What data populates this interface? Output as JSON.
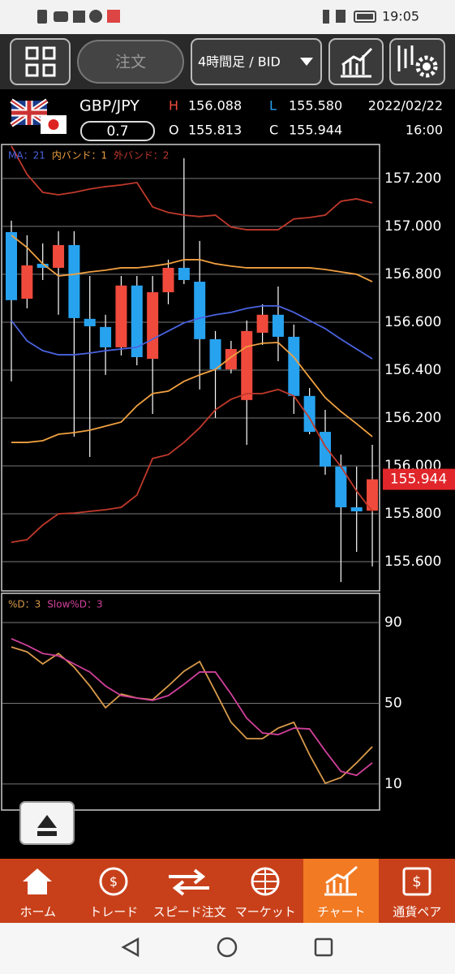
{
  "status_bar": {
    "time": "19:05"
  },
  "toolbar": {
    "order": "注文",
    "timeframe": "4時間足 / BID"
  },
  "header": {
    "pair": "GBP/JPY",
    "lot": "0.7",
    "high_label": "H",
    "high": "156.088",
    "open_label": "O",
    "open": "155.813",
    "low_label": "L",
    "low": "155.580",
    "close_label": "C",
    "close": "155.944",
    "date": "2022/02/22",
    "time": "16:00"
  },
  "chart_data": [
    {
      "type": "candlestick",
      "up_color": "#f04a3c",
      "down_color": "#27a2ef",
      "open": [
        156.976,
        156.698,
        156.844,
        156.827,
        156.922,
        156.614,
        156.58,
        156.495,
        156.753,
        156.447,
        156.725,
        156.827,
        156.769,
        156.529,
        156.403,
        156.275,
        156.556,
        156.631,
        156.539,
        156.292,
        156.142,
        155.997,
        155.827,
        155.813
      ],
      "high": [
        157.024,
        156.963,
        156.929,
        156.98,
        156.98,
        156.793,
        156.631,
        156.793,
        156.793,
        156.793,
        156.861,
        157.285,
        156.939,
        156.563,
        156.522,
        156.607,
        156.675,
        156.749,
        156.59,
        156.325,
        156.234,
        156.047,
        155.997,
        156.088
      ],
      "low": [
        156.353,
        156.658,
        156.776,
        156.631,
        156.122,
        156.037,
        156.38,
        156.461,
        156.42,
        156.217,
        156.675,
        156.759,
        156.319,
        156.2,
        156.386,
        156.088,
        156.505,
        156.437,
        156.217,
        156.132,
        155.963,
        155.515,
        155.641,
        155.58
      ],
      "close": [
        156.692,
        156.837,
        156.827,
        156.922,
        156.617,
        156.583,
        156.495,
        156.753,
        156.454,
        156.725,
        156.827,
        156.776,
        156.529,
        156.403,
        156.488,
        156.563,
        156.631,
        156.539,
        156.292,
        156.142,
        155.997,
        155.827,
        155.81,
        155.944
      ],
      "series": [
        {
          "name": "MA：21",
          "color": "#4a63e0",
          "values": [
            156.607,
            156.522,
            156.481,
            156.464,
            156.464,
            156.471,
            156.481,
            156.488,
            156.495,
            156.529,
            156.563,
            156.597,
            156.617,
            156.631,
            156.641,
            156.658,
            156.668,
            156.668,
            156.641,
            156.607,
            156.573,
            156.529,
            156.488,
            156.447
          ]
        },
        {
          "name": "内バンド：1",
          "color": "#f0a040",
          "upper": [
            156.963,
            156.912,
            156.844,
            156.793,
            156.8,
            156.81,
            156.817,
            156.827,
            156.827,
            156.834,
            156.844,
            156.861,
            156.861,
            156.844,
            156.834,
            156.827,
            156.827,
            156.827,
            156.827,
            156.827,
            156.82,
            156.81,
            156.8,
            156.769
          ],
          "lower": [
            156.098,
            156.098,
            156.105,
            156.132,
            156.139,
            156.149,
            156.166,
            156.183,
            156.251,
            156.302,
            156.312,
            156.353,
            156.38,
            156.403,
            156.454,
            156.498,
            156.512,
            156.515,
            156.454,
            156.369,
            156.285,
            156.227,
            156.176,
            156.122
          ]
        },
        {
          "name": "外バンド：2",
          "color": "#c0392b",
          "upper": [
            157.336,
            157.217,
            157.142,
            157.132,
            157.142,
            157.156,
            157.166,
            157.173,
            157.183,
            157.081,
            157.058,
            157.047,
            157.041,
            157.047,
            156.997,
            156.986,
            156.986,
            156.986,
            157.031,
            157.037,
            157.047,
            157.105,
            157.115,
            157.098
          ],
          "lower": [
            155.681,
            155.692,
            155.753,
            155.8,
            155.803,
            155.81,
            155.817,
            155.827,
            155.878,
            156.031,
            156.047,
            156.098,
            156.159,
            156.234,
            156.278,
            156.302,
            156.302,
            156.319,
            156.292,
            156.2,
            156.081,
            155.997,
            155.895,
            155.81
          ]
        }
      ],
      "last_price": 155.944,
      "ylim": [
        155.478,
        157.342
      ],
      "yticks": [
        {
          "value": 155.6,
          "label": "155.600"
        },
        {
          "value": 155.8,
          "label": "155.800"
        },
        {
          "value": 156.0,
          "label": "156.000"
        },
        {
          "value": 156.2,
          "label": "156.200"
        },
        {
          "value": 156.4,
          "label": "156.400"
        },
        {
          "value": 156.6,
          "label": "156.600"
        },
        {
          "value": 156.8,
          "label": "156.800"
        },
        {
          "value": 157.0,
          "label": "157.000"
        },
        {
          "value": 157.2,
          "label": "157.200"
        }
      ],
      "grid": true
    },
    {
      "type": "line",
      "series": [
        {
          "name": "%D：3",
          "color": "#d89a4a",
          "values": [
            77.9,
            75.5,
            69.5,
            74.7,
            67.9,
            58.6,
            47.8,
            54.6,
            52.6,
            51.8,
            58.6,
            65.9,
            70.7,
            55.8,
            40.6,
            32.5,
            32.5,
            37.7,
            40.6,
            24.5,
            10.4,
            13.2,
            20.5,
            28.5
          ]
        },
        {
          "name": "Slow%D：3",
          "color": "#d0409a",
          "values": [
            82.0,
            78.7,
            74.7,
            73.5,
            69.5,
            65.5,
            58.6,
            53.8,
            52.6,
            51.4,
            53.8,
            59.4,
            65.5,
            65.5,
            54.6,
            42.6,
            35.3,
            34.5,
            37.7,
            37.3,
            26.4,
            16.3,
            14.3,
            20.5
          ]
        }
      ],
      "ylim": [
        -2.9,
        104.5
      ],
      "yticks": [
        10,
        50,
        90
      ],
      "grid": true
    }
  ],
  "nav": [
    "ホーム",
    "トレード",
    "スピード注文",
    "マーケット",
    "チャート",
    "通貨ペア"
  ]
}
